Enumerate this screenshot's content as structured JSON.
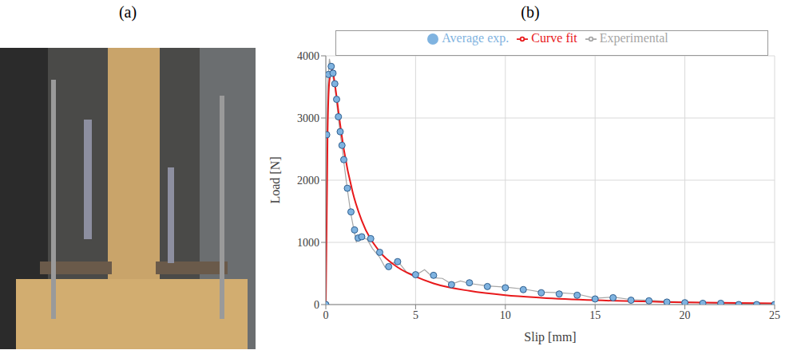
{
  "panel_labels": [
    "(a)",
    "(b)"
  ],
  "chart_data": {
    "type": "line",
    "xlabel": "Slip [mm]",
    "ylabel": "Load [N]",
    "xlim": [
      0,
      25
    ],
    "xticks": [
      0,
      5,
      10,
      15,
      20,
      25
    ],
    "ylim": [
      0,
      4000
    ],
    "yticks": [
      0,
      1000,
      2000,
      3000,
      4000
    ],
    "grid": true,
    "legend": "top",
    "series": [
      {
        "name": "Experimental",
        "type": "line",
        "color": "#a6a6a6",
        "marker": "none",
        "line_style": "solid",
        "x": [
          0,
          0.05,
          0.1,
          0.2,
          0.3,
          0.4,
          0.5,
          0.6,
          0.7,
          0.8,
          0.9,
          1.0,
          1.2,
          1.4,
          1.6,
          1.7,
          1.8,
          2.0,
          2.3,
          2.6,
          3.0,
          3.3,
          3.6,
          4.0,
          4.5,
          5.0,
          5.5,
          6.0,
          6.5,
          7.0,
          7.5,
          8.0,
          9,
          10,
          11,
          12,
          13,
          14,
          15,
          16,
          17,
          18,
          19,
          20,
          21,
          22,
          23,
          24,
          25
        ],
        "values": [
          0,
          2500,
          3500,
          3950,
          3800,
          3650,
          3500,
          3250,
          3000,
          2750,
          2550,
          2300,
          1850,
          1450,
          1150,
          1000,
          1100,
          1080,
          1050,
          900,
          760,
          600,
          650,
          700,
          520,
          470,
          560,
          430,
          420,
          330,
          380,
          340,
          300,
          280,
          250,
          200,
          190,
          170,
          100,
          120,
          80,
          70,
          50,
          40,
          30,
          20,
          10,
          5,
          0
        ]
      },
      {
        "name": "Average exp.",
        "type": "scatter",
        "color": "#7fb3e0",
        "marker": "circle",
        "x": [
          0,
          0.05,
          0.15,
          0.3,
          0.4,
          0.5,
          0.6,
          0.7,
          0.8,
          0.9,
          1.0,
          1.2,
          1.4,
          1.6,
          1.8,
          2.0,
          2.5,
          3.0,
          3.5,
          4.0,
          5,
          6,
          7,
          8,
          9,
          10,
          11,
          12,
          13,
          14,
          15,
          16,
          17,
          18,
          19,
          20,
          21,
          22,
          23,
          24,
          25
        ],
        "values": [
          0,
          2730,
          3700,
          3830,
          3720,
          3550,
          3300,
          3020,
          2780,
          2560,
          2330,
          1870,
          1490,
          1200,
          1070,
          1090,
          1060,
          840,
          610,
          690,
          480,
          470,
          320,
          350,
          290,
          270,
          240,
          190,
          170,
          150,
          90,
          110,
          70,
          60,
          40,
          30,
          20,
          20,
          0,
          0,
          0
        ]
      },
      {
        "name": "Curve fit",
        "type": "line",
        "color": "#e8191b",
        "marker": "none",
        "line_style": "solid",
        "x": [
          0,
          0.1,
          0.2,
          0.35,
          0.5,
          0.75,
          1,
          1.5,
          2,
          3,
          4,
          5,
          6,
          8,
          10,
          12,
          15,
          20,
          25
        ],
        "values": [
          0,
          2800,
          3600,
          3780,
          3550,
          3000,
          2500,
          1800,
          1350,
          850,
          600,
          450,
          340,
          220,
          150,
          110,
          70,
          35,
          20
        ]
      }
    ]
  }
}
